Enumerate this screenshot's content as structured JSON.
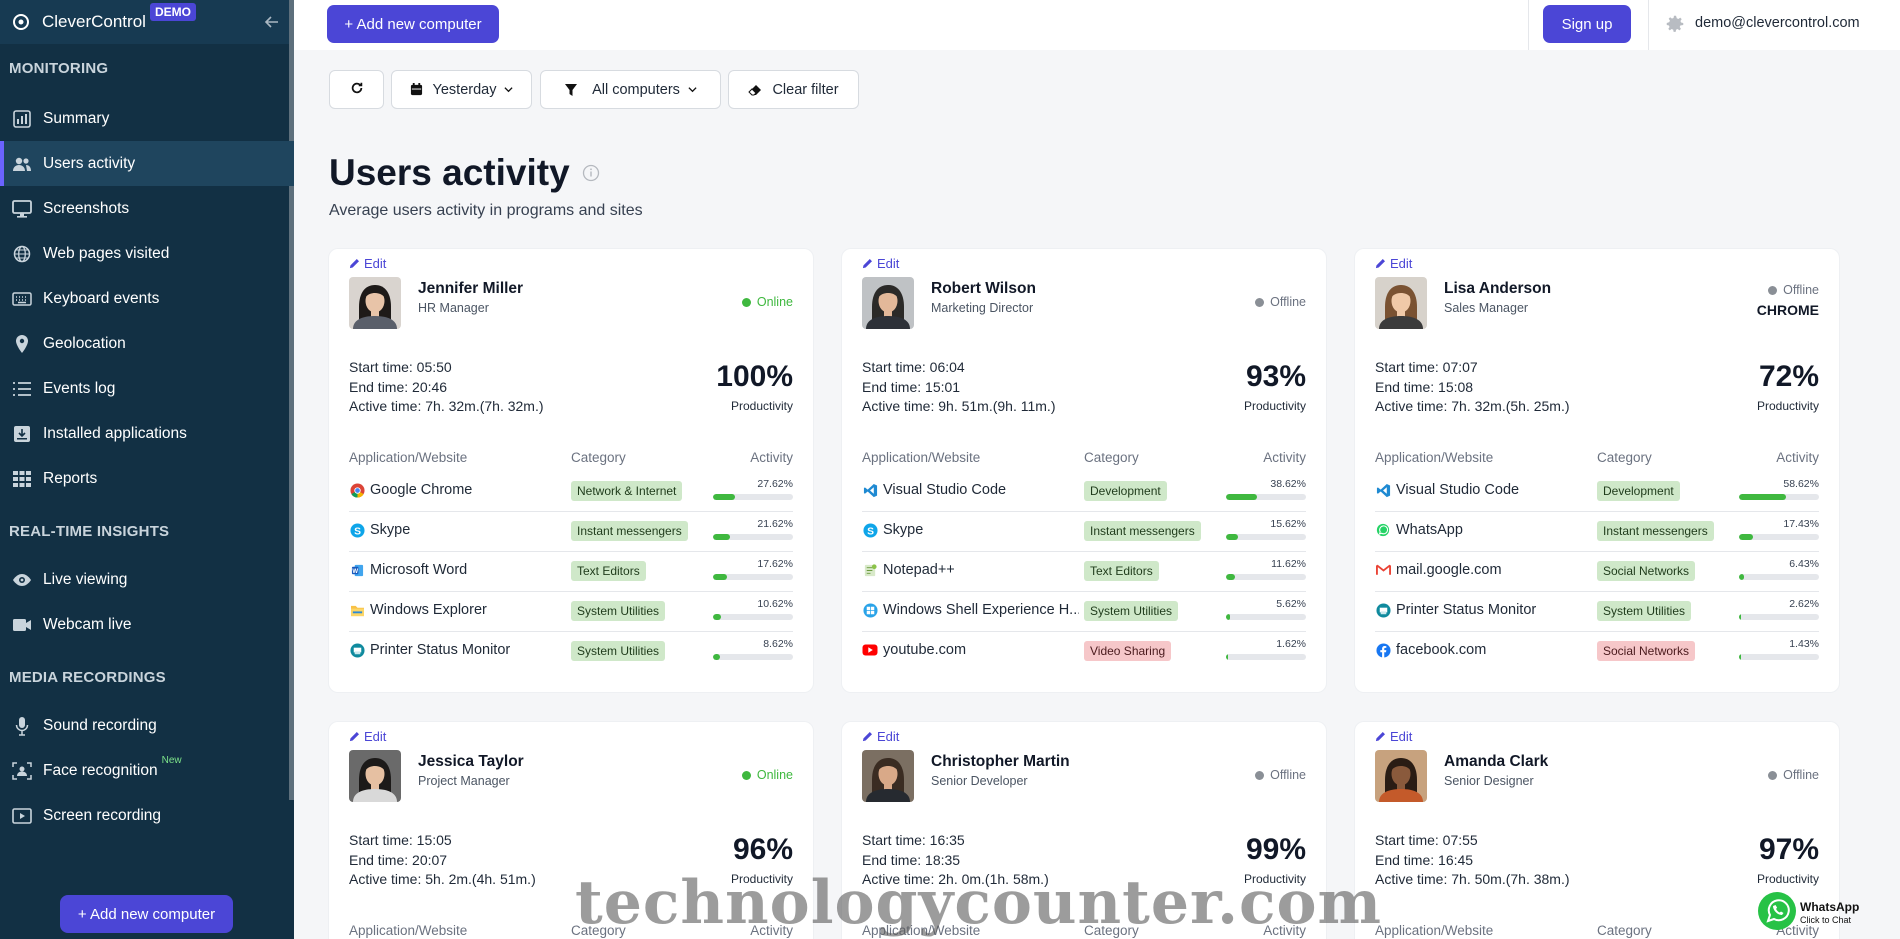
{
  "brand": {
    "name": "CleverControl",
    "badge": "DEMO"
  },
  "sidebar": {
    "sections": [
      {
        "title": "MONITORING",
        "items": [
          {
            "label": "Summary",
            "icon": "chart-icon"
          },
          {
            "label": "Users activity",
            "icon": "users-icon",
            "active": true
          },
          {
            "label": "Screenshots",
            "icon": "monitor-icon"
          },
          {
            "label": "Web pages visited",
            "icon": "globe-icon"
          },
          {
            "label": "Keyboard events",
            "icon": "keyboard-icon"
          },
          {
            "label": "Geolocation",
            "icon": "pin-icon"
          },
          {
            "label": "Events log",
            "icon": "list-icon"
          },
          {
            "label": "Installed applications",
            "icon": "install-icon"
          },
          {
            "label": "Reports",
            "icon": "grid-icon"
          }
        ]
      },
      {
        "title": "REAL-TIME INSIGHTS",
        "items": [
          {
            "label": "Live viewing",
            "icon": "eye-icon"
          },
          {
            "label": "Webcam live",
            "icon": "camera-icon"
          }
        ]
      },
      {
        "title": "MEDIA RECORDINGS",
        "items": [
          {
            "label": "Sound recording",
            "icon": "mic-icon"
          },
          {
            "label": "Face recognition",
            "icon": "face-icon",
            "badge": "New"
          },
          {
            "label": "Screen recording",
            "icon": "play-icon"
          }
        ]
      }
    ],
    "add_button": "+ Add new computer"
  },
  "topbar": {
    "add_button": "+ Add new computer",
    "signup": "Sign up",
    "email": "demo@clevercontrol.com"
  },
  "filters": {
    "date": "Yesterday",
    "computers": "All computers",
    "clear": "Clear filter"
  },
  "page": {
    "title": "Users activity",
    "subtitle": "Average users activity in programs and sites"
  },
  "table_headers": {
    "app": "Application/Website",
    "category": "Category",
    "activity": "Activity"
  },
  "labels": {
    "edit": "Edit",
    "productivity": "Productivity"
  },
  "users": [
    {
      "name": "Jennifer Miller",
      "role": "HR Manager",
      "status": "Online",
      "online": true,
      "current": "",
      "start": "Start time: 05:50",
      "end": "End time: 20:46",
      "active": "Active time: 7h. 32m.(7h. 32m.)",
      "productivity": "100%",
      "avatar": {
        "skin": "#e8c4a8",
        "hair": "#1e1a18",
        "shirt": "#5a5f6a",
        "bg": "#d9d4cf"
      },
      "apps": [
        {
          "name": "Google Chrome",
          "icon": "chrome-icon",
          "category": "Network & Internet",
          "cat_color": "green",
          "pct": "27.62%",
          "fill": 27.62
        },
        {
          "name": "Skype",
          "icon": "skype-icon",
          "category": "Instant messengers",
          "cat_color": "green",
          "pct": "21.62%",
          "fill": 21.62
        },
        {
          "name": "Microsoft Word",
          "icon": "word-icon",
          "category": "Text Editors",
          "cat_color": "green",
          "pct": "17.62%",
          "fill": 17.62
        },
        {
          "name": "Windows Explorer",
          "icon": "folder-icon",
          "category": "System Utilities",
          "cat_color": "green",
          "pct": "10.62%",
          "fill": 10.62
        },
        {
          "name": "Printer Status Monitor",
          "icon": "printer-icon",
          "category": "System Utilities",
          "cat_color": "green",
          "pct": "8.62%",
          "fill": 8.62
        }
      ]
    },
    {
      "name": "Robert Wilson",
      "role": "Marketing Director",
      "status": "Offline",
      "online": false,
      "current": "",
      "start": "Start time: 06:04",
      "end": "End time: 15:01",
      "active": "Active time: 9h. 51m.(9h. 11m.)",
      "productivity": "93%",
      "avatar": {
        "skin": "#e3b899",
        "hair": "#2b2a28",
        "shirt": "#2d3138",
        "bg": "#bfc2c5"
      },
      "apps": [
        {
          "name": "Visual Studio Code",
          "icon": "vscode-icon",
          "category": "Development",
          "cat_color": "green",
          "pct": "38.62%",
          "fill": 38.62
        },
        {
          "name": "Skype",
          "icon": "skype-icon",
          "category": "Instant messengers",
          "cat_color": "green",
          "pct": "15.62%",
          "fill": 15.62
        },
        {
          "name": "Notepad++",
          "icon": "notepad-icon",
          "category": "Text Editors",
          "cat_color": "green",
          "pct": "11.62%",
          "fill": 11.62
        },
        {
          "name": "Windows Shell Experience H...",
          "icon": "windows-icon",
          "category": "System Utilities",
          "cat_color": "green",
          "pct": "5.62%",
          "fill": 5.62
        },
        {
          "name": "youtube.com",
          "icon": "youtube-icon",
          "category": "Video Sharing",
          "cat_color": "red",
          "pct": "1.62%",
          "fill": 1.62
        }
      ]
    },
    {
      "name": "Lisa Anderson",
      "role": "Sales Manager",
      "status": "Offline",
      "online": false,
      "current": "CHROME",
      "start": "Start time: 07:07",
      "end": "End time: 15:08",
      "active": "Active time: 7h. 32m.(5h. 25m.)",
      "productivity": "72%",
      "avatar": {
        "skin": "#f0c9a8",
        "hair": "#7a5232",
        "shirt": "#3b3b3b",
        "bg": "#d7d2cb"
      },
      "apps": [
        {
          "name": "Visual Studio Code",
          "icon": "vscode-icon",
          "category": "Development",
          "cat_color": "green",
          "pct": "58.62%",
          "fill": 58.62
        },
        {
          "name": "WhatsApp",
          "icon": "whatsapp-icon",
          "category": "Instant messengers",
          "cat_color": "green",
          "pct": "17.43%",
          "fill": 17.43
        },
        {
          "name": "mail.google.com",
          "icon": "gmail-icon",
          "category": "Social Networks",
          "cat_color": "green",
          "pct": "6.43%",
          "fill": 6.43
        },
        {
          "name": "Printer Status Monitor",
          "icon": "printer-icon",
          "category": "System Utilities",
          "cat_color": "green",
          "pct": "2.62%",
          "fill": 2.62
        },
        {
          "name": "facebook.com",
          "icon": "facebook-icon",
          "category": "Social Networks",
          "cat_color": "red",
          "pct": "1.43%",
          "fill": 1.43
        }
      ]
    },
    {
      "name": "Jessica Taylor",
      "role": "Project Manager",
      "status": "Online",
      "online": true,
      "current": "",
      "start": "Start time: 15:05",
      "end": "End time: 20:07",
      "active": "Active time: 5h. 2m.(4h. 51m.)",
      "productivity": "96%",
      "avatar": {
        "skin": "#e6c0a2",
        "hair": "#1c1a19",
        "shirt": "#d9d9d9",
        "bg": "#6a6a6a"
      },
      "apps": []
    },
    {
      "name": "Christopher Martin",
      "role": "Senior Developer",
      "status": "Offline",
      "online": false,
      "current": "",
      "start": "Start time: 16:35",
      "end": "End time: 18:35",
      "active": "Active time: 2h. 0m.(1h. 58m.)",
      "productivity": "99%",
      "avatar": {
        "skin": "#d9a988",
        "hair": "#3a2c22",
        "shirt": "#262a30",
        "bg": "#7b6f62"
      },
      "apps": []
    },
    {
      "name": "Amanda Clark",
      "role": "Senior Designer",
      "status": "Offline",
      "online": false,
      "current": "",
      "start": "Start time: 07:55",
      "end": "End time: 16:45",
      "active": "Active time: 7h. 50m.(7h. 38m.)",
      "productivity": "97%",
      "avatar": {
        "skin": "#8a5a3c",
        "hair": "#2a1c14",
        "shirt": "#c45a2a",
        "bg": "#c7a27e"
      },
      "apps": []
    }
  ],
  "colors": {
    "accent": "#4b46d6",
    "sidebar": "#123044",
    "online": "#3fb83f",
    "offline": "#8a8f96",
    "bar": "#3fb83f"
  },
  "watermark": "technologycounter.com",
  "whatsapp": {
    "title": "WhatsApp",
    "sub": "Click to Chat"
  }
}
